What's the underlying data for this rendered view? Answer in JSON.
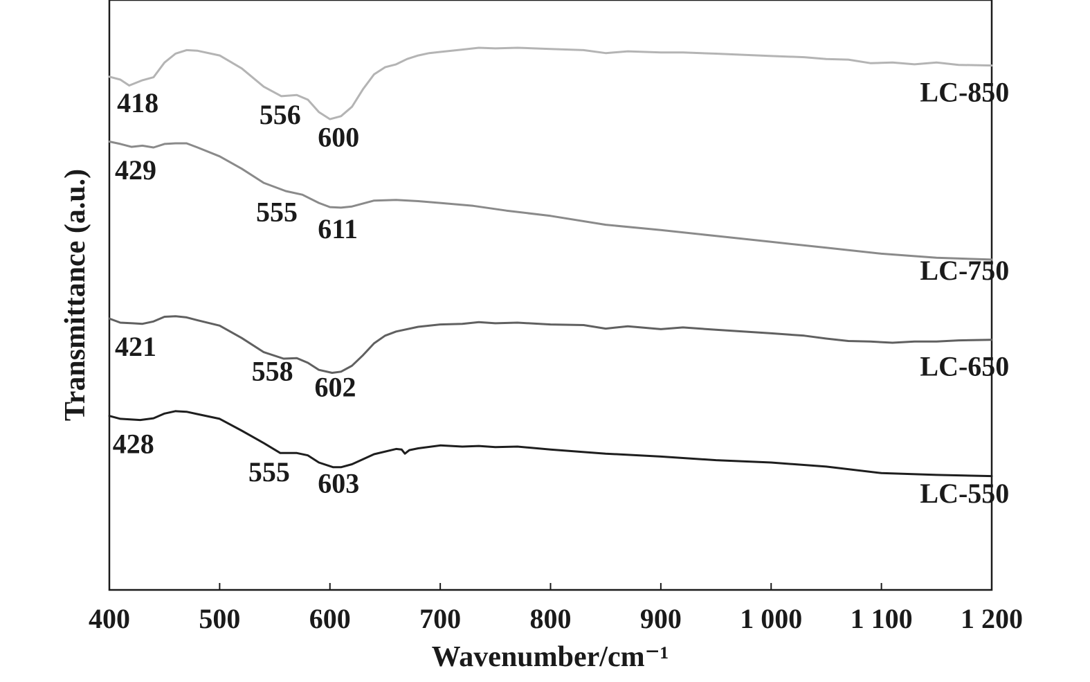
{
  "chart_data": {
    "type": "line",
    "title": "",
    "xlabel": "Wavenumber/cm⁻¹",
    "ylabel": "Transmittance (a.u.)",
    "xlim": [
      400,
      1200
    ],
    "ylim": [
      0,
      100
    ],
    "grid": false,
    "legend": "none",
    "x_ticks": [
      {
        "value": 400,
        "label": "400"
      },
      {
        "value": 500,
        "label": "500"
      },
      {
        "value": 600,
        "label": "600"
      },
      {
        "value": 700,
        "label": "700"
      },
      {
        "value": 800,
        "label": "800"
      },
      {
        "value": 900,
        "label": "900"
      },
      {
        "value": 1000,
        "label": "1 000"
      },
      {
        "value": 1100,
        "label": "1 100"
      },
      {
        "value": 1200,
        "label": "1 200"
      }
    ],
    "series": [
      {
        "name": "LC-850",
        "color": "#b4b4b4",
        "x": [
          400,
          410,
          418,
          430,
          440,
          450,
          460,
          470,
          480,
          500,
          520,
          540,
          556,
          570,
          580,
          590,
          600,
          610,
          620,
          630,
          640,
          650,
          660,
          670,
          680,
          690,
          700,
          720,
          735,
          750,
          770,
          800,
          830,
          850,
          870,
          900,
          920,
          950,
          1000,
          1030,
          1050,
          1070,
          1090,
          1110,
          1130,
          1150,
          1170,
          1200
        ],
        "y": [
          87.0,
          86.5,
          85.5,
          86.4,
          86.9,
          89.4,
          90.9,
          91.5,
          91.4,
          90.6,
          88.4,
          85.3,
          83.7,
          83.9,
          83.1,
          81.0,
          79.8,
          80.3,
          81.9,
          84.9,
          87.4,
          88.6,
          89.1,
          90.0,
          90.6,
          91.0,
          91.2,
          91.6,
          91.9,
          91.8,
          91.9,
          91.7,
          91.5,
          91.0,
          91.3,
          91.1,
          91.1,
          90.9,
          90.5,
          90.3,
          90.0,
          89.9,
          89.3,
          89.4,
          89.1,
          89.4,
          89.0,
          88.9
        ]
      },
      {
        "name": "LC-750",
        "color": "#8a8a8a",
        "x": [
          400,
          410,
          420,
          430,
          440,
          450,
          460,
          470,
          480,
          500,
          520,
          540,
          560,
          575,
          590,
          600,
          610,
          620,
          640,
          660,
          680,
          700,
          730,
          760,
          800,
          850,
          900,
          950,
          1000,
          1050,
          1100,
          1150,
          1200
        ],
        "y": [
          76.0,
          75.6,
          75.1,
          75.3,
          75.0,
          75.6,
          75.7,
          75.7,
          75.0,
          73.5,
          71.4,
          69.0,
          67.6,
          67.0,
          65.6,
          64.9,
          64.8,
          65.0,
          66.0,
          66.1,
          65.9,
          65.6,
          65.1,
          64.3,
          63.4,
          61.9,
          61.0,
          60.0,
          59.0,
          58.0,
          57.0,
          56.3,
          56.0
        ]
      },
      {
        "name": "LC-650",
        "color": "#606060",
        "x": [
          400,
          410,
          421,
          430,
          440,
          450,
          460,
          470,
          480,
          500,
          520,
          540,
          558,
          570,
          580,
          590,
          602,
          610,
          620,
          630,
          640,
          650,
          660,
          680,
          700,
          720,
          735,
          750,
          770,
          800,
          830,
          850,
          870,
          900,
          920,
          950,
          1000,
          1030,
          1050,
          1070,
          1090,
          1110,
          1130,
          1150,
          1170,
          1200
        ],
        "y": [
          46.0,
          45.3,
          45.2,
          45.1,
          45.5,
          46.3,
          46.4,
          46.2,
          45.7,
          44.8,
          42.7,
          40.3,
          39.2,
          39.3,
          38.5,
          37.3,
          36.8,
          37.0,
          38.0,
          39.8,
          41.8,
          43.1,
          43.8,
          44.6,
          45.0,
          45.1,
          45.4,
          45.2,
          45.3,
          45.0,
          44.9,
          44.3,
          44.7,
          44.2,
          44.5,
          44.1,
          43.5,
          43.1,
          42.6,
          42.2,
          42.1,
          41.9,
          42.1,
          42.1,
          42.3,
          42.4
        ]
      },
      {
        "name": "LC-550",
        "color": "#1e1e1e",
        "x": [
          400,
          410,
          428,
          440,
          450,
          460,
          470,
          480,
          500,
          520,
          540,
          555,
          570,
          580,
          590,
          603,
          610,
          620,
          640,
          660,
          665,
          668,
          672,
          680,
          700,
          720,
          735,
          750,
          770,
          800,
          850,
          900,
          950,
          1000,
          1050,
          1100,
          1150,
          1200
        ],
        "y": [
          29.5,
          29.0,
          28.8,
          29.1,
          29.9,
          30.3,
          30.2,
          29.8,
          29.0,
          27.0,
          24.9,
          23.2,
          23.2,
          22.8,
          21.6,
          20.8,
          20.8,
          21.3,
          23.0,
          23.9,
          23.8,
          23.1,
          23.7,
          24.0,
          24.5,
          24.3,
          24.4,
          24.2,
          24.3,
          23.8,
          23.1,
          22.6,
          22.0,
          21.6,
          20.9,
          19.8,
          19.5,
          19.3
        ]
      }
    ],
    "series_labels": [
      {
        "text": "LC-850",
        "x": 1135,
        "y": 82.8
      },
      {
        "text": "LC-750",
        "x": 1135,
        "y": 52.6
      },
      {
        "text": "LC-650",
        "x": 1135,
        "y": 36.3
      },
      {
        "text": "LC-550",
        "x": 1135,
        "y": 14.8
      }
    ],
    "annotations": [
      {
        "text": "418",
        "x": 407,
        "y": 81.0
      },
      {
        "text": "556",
        "x": 536,
        "y": 79.0
      },
      {
        "text": "600",
        "x": 589,
        "y": 75.2
      },
      {
        "text": "429",
        "x": 405,
        "y": 69.6
      },
      {
        "text": "555",
        "x": 533,
        "y": 62.5
      },
      {
        "text": "611",
        "x": 589,
        "y": 59.6
      },
      {
        "text": "421",
        "x": 405,
        "y": 39.7
      },
      {
        "text": "558",
        "x": 529,
        "y": 35.5
      },
      {
        "text": "602",
        "x": 586,
        "y": 32.8
      },
      {
        "text": "428",
        "x": 403,
        "y": 23.2
      },
      {
        "text": "555",
        "x": 526,
        "y": 18.4
      },
      {
        "text": "603",
        "x": 589,
        "y": 16.5
      }
    ]
  }
}
